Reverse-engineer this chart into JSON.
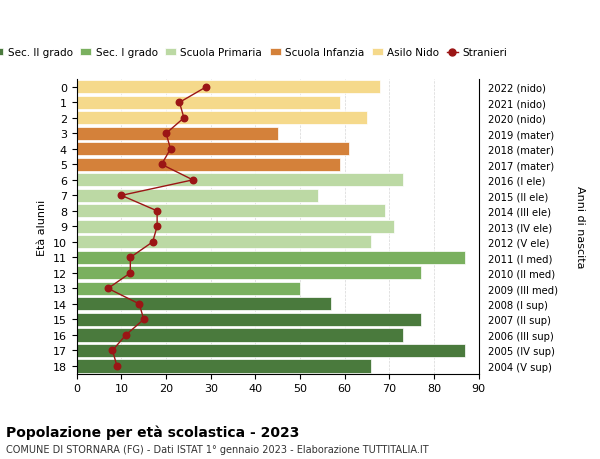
{
  "ages": [
    18,
    17,
    16,
    15,
    14,
    13,
    12,
    11,
    10,
    9,
    8,
    7,
    6,
    5,
    4,
    3,
    2,
    1,
    0
  ],
  "right_labels": [
    "2004 (V sup)",
    "2005 (IV sup)",
    "2006 (III sup)",
    "2007 (II sup)",
    "2008 (I sup)",
    "2009 (III med)",
    "2010 (II med)",
    "2011 (I med)",
    "2012 (V ele)",
    "2013 (IV ele)",
    "2014 (III ele)",
    "2015 (II ele)",
    "2016 (I ele)",
    "2017 (mater)",
    "2018 (mater)",
    "2019 (mater)",
    "2020 (nido)",
    "2021 (nido)",
    "2022 (nido)"
  ],
  "bar_values": [
    66,
    87,
    73,
    77,
    57,
    50,
    77,
    87,
    66,
    71,
    69,
    54,
    73,
    59,
    61,
    45,
    65,
    59,
    68
  ],
  "bar_colors": [
    "#4a7a3d",
    "#4a7a3d",
    "#4a7a3d",
    "#4a7a3d",
    "#4a7a3d",
    "#7ab05f",
    "#7ab05f",
    "#7ab05f",
    "#bcd9a4",
    "#bcd9a4",
    "#bcd9a4",
    "#bcd9a4",
    "#bcd9a4",
    "#d4813a",
    "#d4813a",
    "#d4813a",
    "#f5d98b",
    "#f5d98b",
    "#f5d98b"
  ],
  "stranieri_values": [
    9,
    8,
    11,
    15,
    14,
    7,
    12,
    12,
    17,
    18,
    18,
    10,
    26,
    19,
    21,
    20,
    24,
    23,
    29
  ],
  "legend_labels": [
    "Sec. II grado",
    "Sec. I grado",
    "Scuola Primaria",
    "Scuola Infanzia",
    "Asilo Nido",
    "Stranieri"
  ],
  "legend_colors": [
    "#4a7a3d",
    "#7ab05f",
    "#bcd9a4",
    "#d4813a",
    "#f5d98b",
    "#9b1515"
  ],
  "title": "Popolazione per età scolastica - 2023",
  "subtitle": "COMUNE DI STORNARA (FG) - Dati ISTAT 1° gennaio 2023 - Elaborazione TUTTITALIA.IT",
  "ylabel_left": "Età alunni",
  "ylabel_right": "Anni di nascita",
  "xlim": [
    0,
    90
  ],
  "xticks": [
    0,
    10,
    20,
    30,
    40,
    50,
    60,
    70,
    80,
    90
  ],
  "bar_height": 0.85,
  "stranieri_color": "#9b1515",
  "bg_color": "#ffffff",
  "bar_edge_color": "white"
}
